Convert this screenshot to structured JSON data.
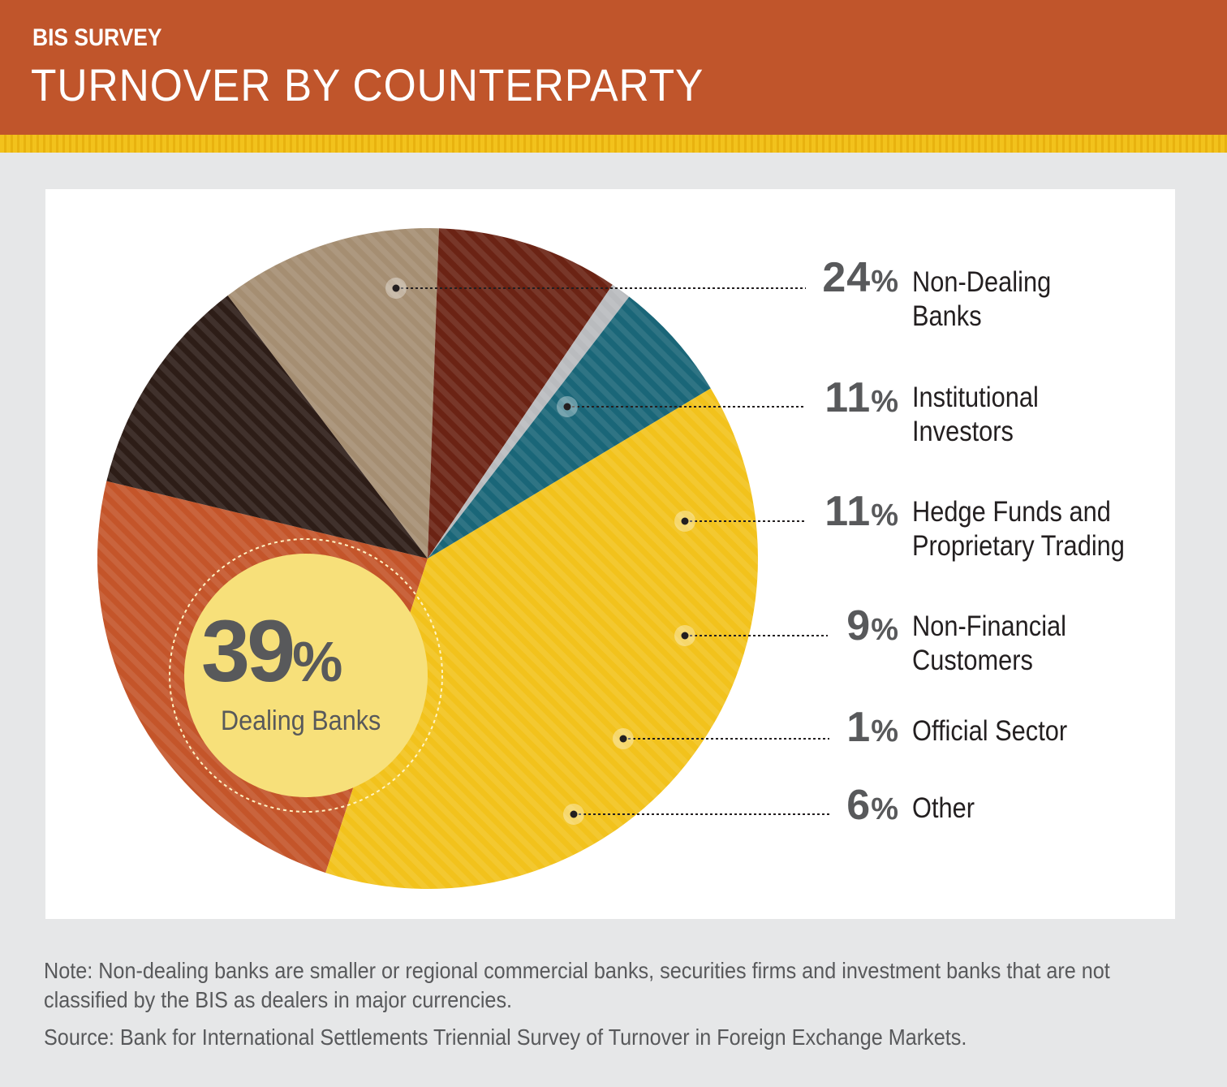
{
  "header": {
    "kicker": "BIS SURVEY",
    "title": "TURNOVER BY COUNTERPARTY"
  },
  "chart_data": {
    "type": "pie",
    "slices": [
      {
        "label": "Dealing Banks",
        "value": 39,
        "display": "39",
        "color": "#f2c21c"
      },
      {
        "label": "Non-Dealing Banks",
        "value": 24,
        "display": "24",
        "color": "#c4552a"
      },
      {
        "label": "Institutional Investors",
        "value": 11,
        "display": "11",
        "color": "#2d1d17"
      },
      {
        "label": "Hedge Funds and Proprietary Trading",
        "value": 11,
        "display": "11",
        "color": "#a58e72"
      },
      {
        "label": "Non-Financial Customers",
        "value": 9,
        "display": "9",
        "color": "#6b2314"
      },
      {
        "label": "Official Sector",
        "value": 1,
        "display": "1",
        "color": "#b9bbbe"
      },
      {
        "label": "Other",
        "value": 6,
        "display": "6",
        "color": "#1a6678"
      }
    ],
    "percent_symbol": "%",
    "legend_placement": "right"
  },
  "labels": {
    "non_dealing": {
      "pct": "24",
      "name": "Non-Dealing\nBanks"
    },
    "institutional": {
      "pct": "11",
      "name": "Institutional\nInvestors"
    },
    "hedge": {
      "pct": "11",
      "name": "Hedge Funds and\nProprietary Trading"
    },
    "non_financial": {
      "pct": "9",
      "name": "Non-Financial\nCustomers"
    },
    "official": {
      "pct": "1",
      "name": "Official Sector"
    },
    "other": {
      "pct": "6",
      "name": "Other"
    },
    "dealing": {
      "pct": "39",
      "name": "Dealing Banks"
    }
  },
  "footer": {
    "note": "Note: Non-dealing banks are smaller or regional commercial banks, securities firms and investment banks that are not classified by the BIS as dealers in major currencies.",
    "source": "Source: Bank for International Settlements Triennial Survey of Turnover in Foreign Exchange Markets."
  }
}
